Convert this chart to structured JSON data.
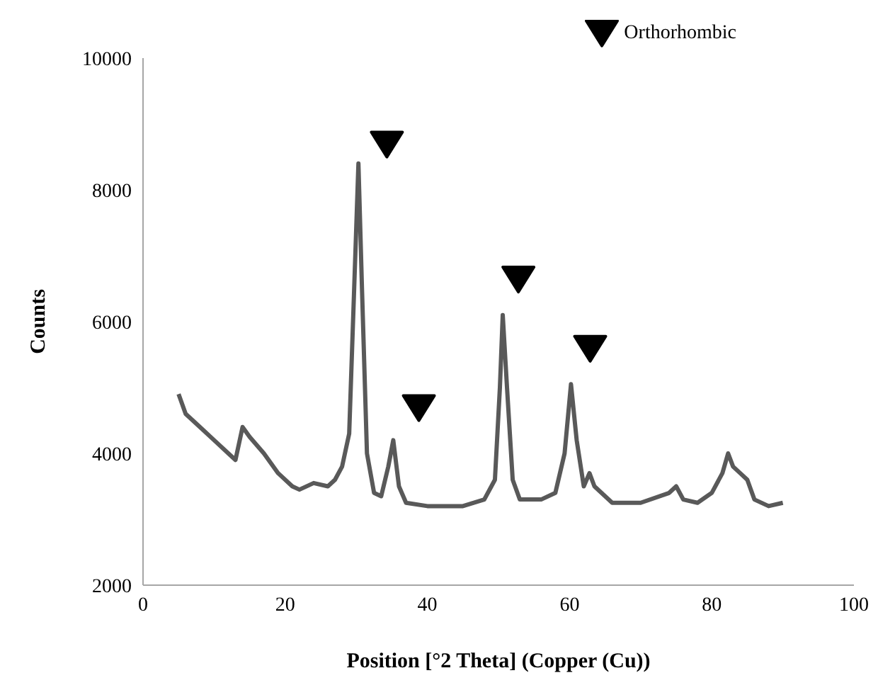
{
  "chart_data": {
    "type": "line",
    "xlabel": "Position [°2 Theta] (Copper (Cu))",
    "ylabel": "Counts",
    "xlim": [
      0,
      100
    ],
    "xticks": [
      0,
      20,
      40,
      60,
      80,
      100
    ],
    "ylim": [
      2000,
      10000
    ],
    "yticks": [
      2000,
      4000,
      6000,
      8000,
      10000
    ],
    "grid": false,
    "legend": "top right",
    "series": [
      {
        "color": "#595959",
        "marker": "none",
        "x": [
          5,
          6,
          8,
          10,
          12,
          13,
          14,
          15,
          17,
          19,
          21,
          22,
          24,
          26,
          27,
          28,
          29,
          29.7,
          30.3,
          30.8,
          31.5,
          32.5,
          33.5,
          34.5,
          35.2,
          36,
          37,
          40,
          45,
          48,
          49.5,
          50.2,
          50.6,
          51.2,
          52,
          53,
          56,
          58,
          59.3,
          60.2,
          61,
          62,
          62.8,
          63.5,
          66,
          70,
          74,
          75,
          76,
          78,
          80,
          81.5,
          82.3,
          83,
          84,
          85,
          86,
          88,
          90
        ],
        "values": [
          4900,
          4600,
          4400,
          4200,
          4000,
          3900,
          4400,
          4250,
          4000,
          3700,
          3500,
          3450,
          3550,
          3500,
          3600,
          3800,
          4300,
          6500,
          8400,
          6500,
          4000,
          3400,
          3350,
          3800,
          4200,
          3500,
          3250,
          3200,
          3200,
          3300,
          3600,
          5000,
          6100,
          5000,
          3600,
          3300,
          3300,
          3400,
          4000,
          5050,
          4200,
          3500,
          3700,
          3500,
          3250,
          3250,
          3400,
          3500,
          3300,
          3250,
          3400,
          3700,
          4000,
          3800,
          3700,
          3600,
          3300,
          3200,
          3250
        ]
      },
      {
        "type": "scatter",
        "name": "Orthorhombic",
        "color": "#000000",
        "marker": "triangle",
        "x": [
          34.3,
          38.8,
          52.8,
          62.9
        ],
        "values": [
          8700,
          4700,
          6650,
          5600
        ]
      }
    ]
  }
}
